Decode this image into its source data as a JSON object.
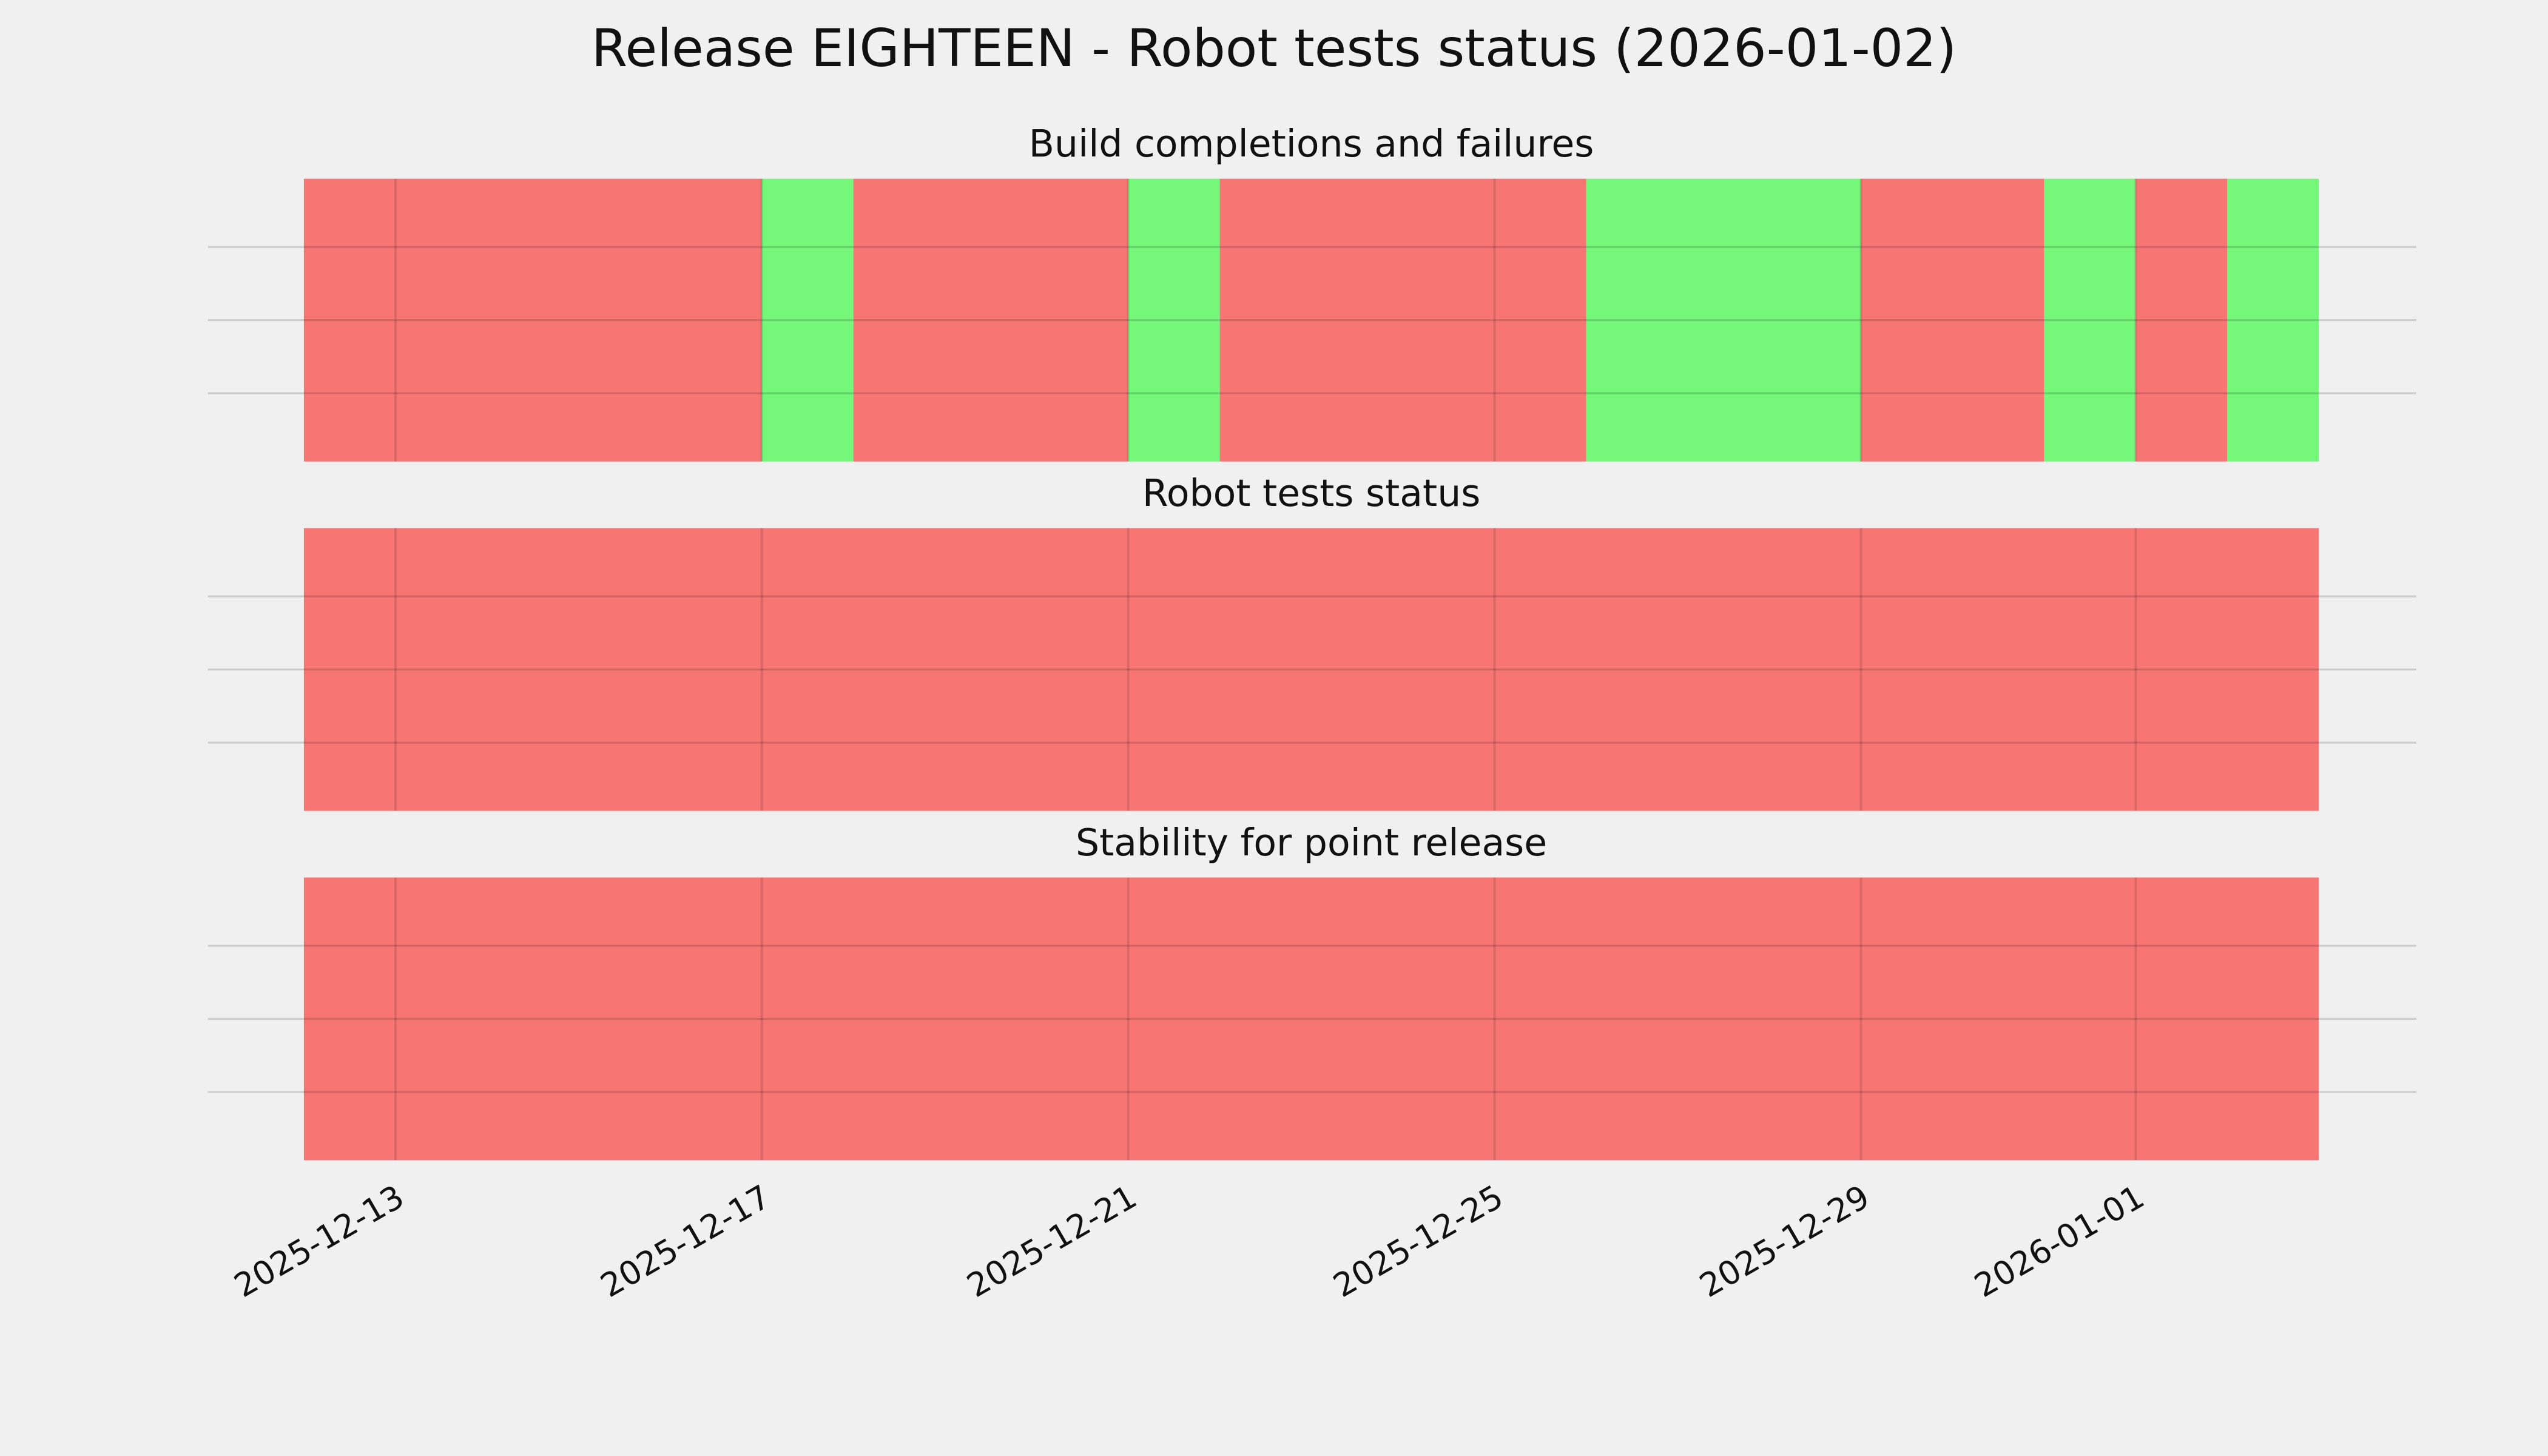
{
  "title": "Release EIGHTEEN - Robot tests status (2026-01-02)",
  "chart_data": [
    {
      "type": "timeline",
      "title": "Build completions and failures",
      "xlim": [
        "2025-12-12",
        "2026-01-03"
      ],
      "spans": [
        {
          "start": "2025-12-12",
          "end": "2025-12-17",
          "color": "#f77674"
        },
        {
          "start": "2025-12-17",
          "end": "2025-12-18",
          "color": "#75f77a"
        },
        {
          "start": "2025-12-18",
          "end": "2025-12-21",
          "color": "#f77674"
        },
        {
          "start": "2025-12-21",
          "end": "2025-12-22",
          "color": "#75f77a"
        },
        {
          "start": "2025-12-22",
          "end": "2025-12-26",
          "color": "#f77674"
        },
        {
          "start": "2025-12-26",
          "end": "2025-12-29",
          "color": "#75f77a"
        },
        {
          "start": "2025-12-29",
          "end": "2025-12-31",
          "color": "#f77674"
        },
        {
          "start": "2025-12-31",
          "end": "2026-01-01",
          "color": "#75f77a"
        },
        {
          "start": "2026-01-01",
          "end": "2026-01-02",
          "color": "#f77674"
        },
        {
          "start": "2026-01-02",
          "end": "2026-01-03",
          "color": "#75f77a"
        }
      ]
    },
    {
      "type": "timeline",
      "title": "Robot tests status",
      "xlim": [
        "2025-12-12",
        "2026-01-03"
      ],
      "spans": [
        {
          "start": "2025-12-12",
          "end": "2026-01-03",
          "color": "#f77674"
        }
      ]
    },
    {
      "type": "timeline",
      "title": "Stability for point release",
      "xlim": [
        "2025-12-12",
        "2026-01-03"
      ],
      "xticks": [
        "2025-12-13",
        "2025-12-17",
        "2025-12-21",
        "2025-12-25",
        "2025-12-29",
        "2026-01-01"
      ],
      "spans": [
        {
          "start": "2025-12-12",
          "end": "2026-01-03",
          "color": "#f77674"
        }
      ]
    }
  ]
}
